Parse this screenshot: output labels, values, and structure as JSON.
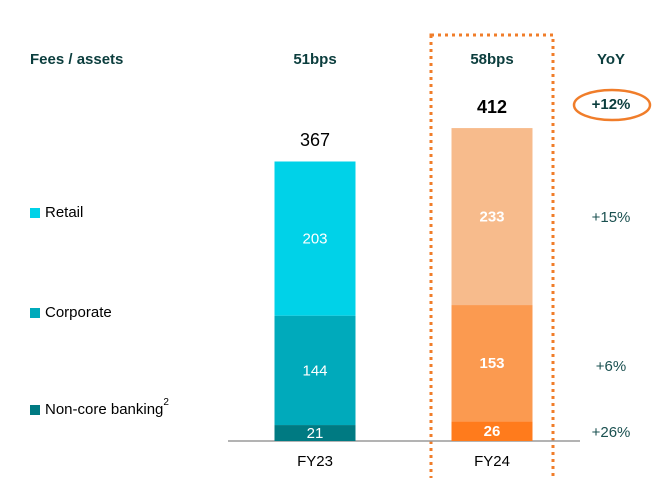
{
  "chart_data": {
    "type": "stacked_bar",
    "header": [
      "Fees / assets",
      "51bps",
      "58bps",
      "YoY"
    ],
    "categories": [
      "FY23",
      "FY24"
    ],
    "totals": [
      367,
      412
    ],
    "series": [
      {
        "name": "Non-core banking",
        "name_sup": "2",
        "colors": [
          "#007a82",
          "#ff7b1c"
        ],
        "values": [
          21,
          26
        ]
      },
      {
        "name": "Corporate",
        "colors": [
          "#00aabb",
          "#fb9a50"
        ],
        "values": [
          144,
          153
        ]
      },
      {
        "name": "Retail",
        "colors": [
          "#00d2e8",
          "#f7bb8c"
        ],
        "values": [
          203,
          233
        ]
      }
    ],
    "yoy": {
      "total": "+12%",
      "series": [
        "+26%",
        "+6%",
        "+15%"
      ]
    },
    "ylim": [
      0,
      420
    ]
  }
}
